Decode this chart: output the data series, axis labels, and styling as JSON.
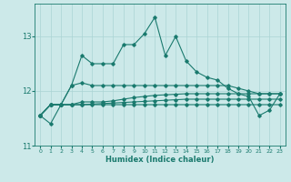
{
  "xlabel": "Humidex (Indice chaleur)",
  "x": [
    0,
    1,
    2,
    3,
    4,
    5,
    6,
    7,
    8,
    9,
    10,
    11,
    12,
    13,
    14,
    15,
    16,
    17,
    18,
    19,
    20,
    21,
    22,
    23
  ],
  "main_line": [
    11.55,
    11.4,
    11.75,
    12.1,
    12.65,
    12.5,
    12.5,
    12.5,
    12.85,
    12.85,
    13.05,
    13.35,
    12.65,
    13.0,
    12.55,
    12.35,
    12.25,
    12.2,
    12.05,
    11.95,
    11.9,
    11.55,
    11.65,
    11.95
  ],
  "flat1": [
    11.55,
    11.75,
    11.75,
    12.1,
    12.15,
    12.1,
    12.1,
    12.1,
    12.1,
    12.1,
    12.1,
    12.1,
    12.1,
    12.1,
    12.1,
    12.1,
    12.1,
    12.1,
    12.1,
    12.05,
    12.0,
    11.95,
    11.95,
    11.95
  ],
  "flat2": [
    11.55,
    11.75,
    11.75,
    11.75,
    11.8,
    11.8,
    11.8,
    11.82,
    11.85,
    11.88,
    11.9,
    11.92,
    11.93,
    11.94,
    11.95,
    11.95,
    11.95,
    11.95,
    11.95,
    11.95,
    11.95,
    11.95,
    11.95,
    11.95
  ],
  "flat3": [
    11.55,
    11.75,
    11.75,
    11.75,
    11.75,
    11.76,
    11.77,
    11.78,
    11.79,
    11.8,
    11.81,
    11.82,
    11.83,
    11.84,
    11.85,
    11.85,
    11.85,
    11.85,
    11.85,
    11.85,
    11.85,
    11.85,
    11.85,
    11.85
  ],
  "flat4": [
    11.55,
    11.75,
    11.75,
    11.75,
    11.75,
    11.75,
    11.75,
    11.75,
    11.75,
    11.75,
    11.75,
    11.75,
    11.75,
    11.75,
    11.75,
    11.75,
    11.75,
    11.75,
    11.75,
    11.75,
    11.75,
    11.75,
    11.75,
    11.75
  ],
  "line_color": "#1a7a6e",
  "bg_color": "#cce9e9",
  "grid_color": "#aad4d4",
  "ylim": [
    11.0,
    13.6
  ],
  "yticks": [
    11,
    12,
    13
  ],
  "xticks": [
    0,
    1,
    2,
    3,
    4,
    5,
    6,
    7,
    8,
    9,
    10,
    11,
    12,
    13,
    14,
    15,
    16,
    17,
    18,
    19,
    20,
    21,
    22,
    23
  ]
}
